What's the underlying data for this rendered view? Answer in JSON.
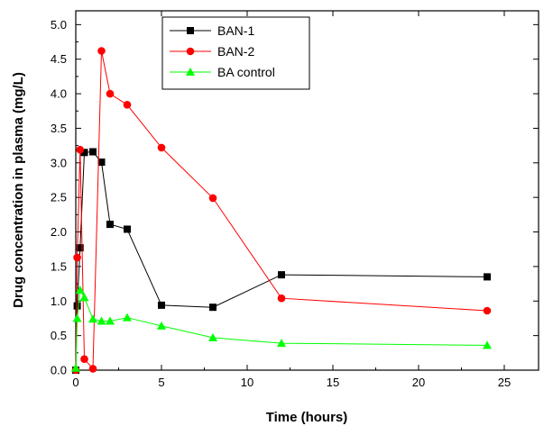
{
  "chart_data": {
    "type": "line",
    "title": "",
    "xlabel": "Time (hours)",
    "ylabel": "Drug concentration in plasma (mg/L)",
    "xlim": [
      0,
      27
    ],
    "ylim": [
      0,
      5.2
    ],
    "x_ticks": [
      "0",
      "5",
      "10",
      "15",
      "20",
      "25"
    ],
    "y_ticks": [
      "0.0",
      "0.5",
      "1.0",
      "1.5",
      "2.0",
      "2.5",
      "3.0",
      "3.5",
      "4.0",
      "4.5",
      "5.0"
    ],
    "grid": false,
    "legend_position": "top-left",
    "series": [
      {
        "name": "BAN-1",
        "color": "#000000",
        "marker": "square",
        "x": [
          0,
          0.083,
          0.25,
          0.5,
          1,
          1.5,
          2,
          3,
          5,
          8,
          12,
          24
        ],
        "y": [
          0.0,
          0.93,
          1.77,
          3.15,
          3.16,
          3.01,
          2.11,
          2.04,
          0.94,
          0.91,
          1.38,
          1.35
        ]
      },
      {
        "name": "BAN-2",
        "color": "#ff0000",
        "marker": "circle",
        "x": [
          0,
          0.083,
          0.25,
          0.5,
          1,
          1.5,
          2,
          3,
          5,
          8,
          12,
          24
        ],
        "y": [
          0.0,
          1.63,
          3.19,
          0.16,
          0.02,
          4.62,
          4.0,
          3.84,
          3.22,
          2.49,
          1.04,
          0.86
        ]
      },
      {
        "name": "BA control",
        "color": "#00ff00",
        "marker": "triangle",
        "x": [
          0,
          0.083,
          0.25,
          0.5,
          1,
          1.5,
          2,
          3,
          5,
          8,
          12,
          24
        ],
        "y": [
          0.03,
          0.75,
          1.16,
          1.05,
          0.74,
          0.71,
          0.71,
          0.76,
          0.64,
          0.47,
          0.39,
          0.36
        ]
      }
    ]
  }
}
